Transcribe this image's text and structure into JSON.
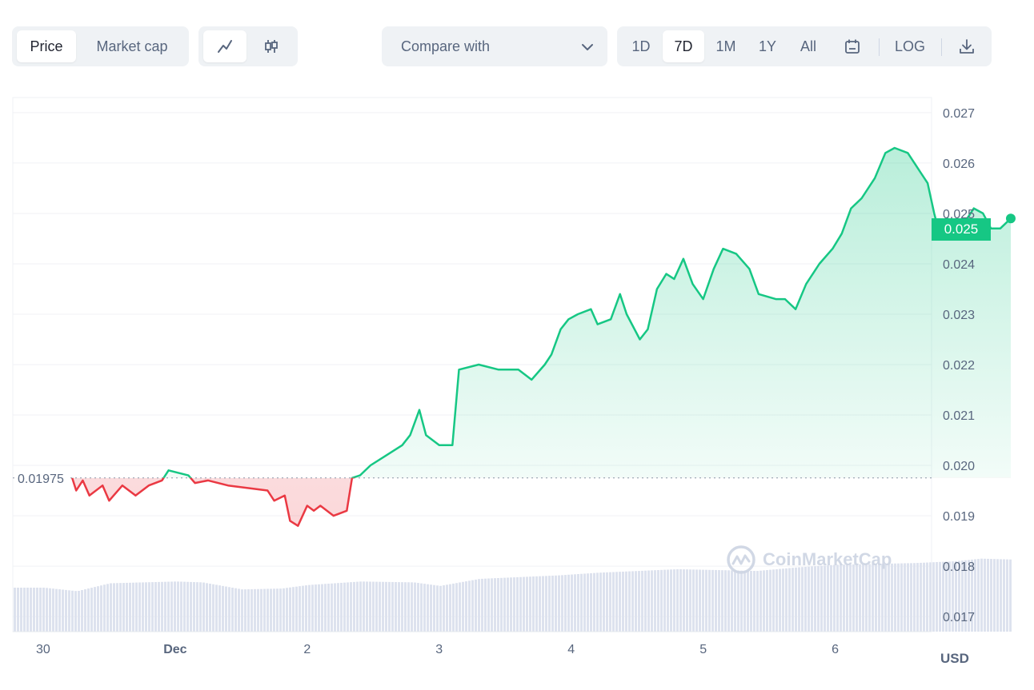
{
  "toolbar": {
    "metric_tabs": [
      {
        "label": "Price",
        "active": true
      },
      {
        "label": "Market cap",
        "active": false
      }
    ],
    "chart_style": [
      {
        "icon": "line-chart-icon",
        "active": true
      },
      {
        "icon": "candlestick-icon",
        "active": false
      }
    ],
    "compare": {
      "label": "Compare with",
      "icon": "chevron-down-icon"
    },
    "ranges": [
      {
        "label": "1D",
        "active": false
      },
      {
        "label": "7D",
        "active": true
      },
      {
        "label": "1M",
        "active": false
      },
      {
        "label": "1Y",
        "active": false
      },
      {
        "label": "All",
        "active": false
      }
    ],
    "calendar_icon": "calendar-icon",
    "log_label": "LOG",
    "download_icon": "download-icon"
  },
  "current_price_label": "0.025",
  "baseline_label": "0.01975",
  "currency_label": "USD",
  "watermark_text": "CoinMarketCap",
  "colors": {
    "up": "#16c784",
    "down": "#ea3943",
    "accent_bg": "#eff2f5",
    "volume": "#dde2ee"
  },
  "chart_data": {
    "type": "line",
    "title": "",
    "xlabel": "",
    "ylabel": "",
    "ylim": [
      0.0167,
      0.0273
    ],
    "baseline": 0.01975,
    "y_ticks": [
      "0.027",
      "0.026",
      "0.025",
      "0.024",
      "0.023",
      "0.022",
      "0.021",
      "0.020",
      "0.019",
      "0.018",
      "0.017"
    ],
    "x_ticks": [
      {
        "label": "30",
        "day": 0,
        "bold": false
      },
      {
        "label": "Dec",
        "day": 1,
        "bold": true
      },
      {
        "label": "2",
        "day": 2,
        "bold": false
      },
      {
        "label": "3",
        "day": 3,
        "bold": false
      },
      {
        "label": "4",
        "day": 4,
        "bold": false
      },
      {
        "label": "5",
        "day": 5,
        "bold": false
      },
      {
        "label": "6",
        "day": 6,
        "bold": false
      }
    ],
    "x_range_days": [
      -0.23,
      6.73
    ],
    "series": [
      {
        "values": [
          [
            0.22,
            0.01975
          ],
          [
            0.25,
            0.0195
          ],
          [
            0.3,
            0.0197
          ],
          [
            0.35,
            0.0194
          ],
          [
            0.45,
            0.0196
          ],
          [
            0.5,
            0.0193
          ],
          [
            0.6,
            0.0196
          ],
          [
            0.7,
            0.0194
          ],
          [
            0.8,
            0.0196
          ],
          [
            0.9,
            0.0197
          ],
          [
            0.95,
            0.0199
          ],
          [
            1.1,
            0.0198
          ],
          [
            1.15,
            0.01965
          ],
          [
            1.25,
            0.0197
          ],
          [
            1.4,
            0.0196
          ],
          [
            1.55,
            0.01955
          ],
          [
            1.7,
            0.0195
          ],
          [
            1.75,
            0.0193
          ],
          [
            1.83,
            0.0194
          ],
          [
            1.87,
            0.0189
          ],
          [
            1.93,
            0.0188
          ],
          [
            2.0,
            0.0192
          ],
          [
            2.05,
            0.0191
          ],
          [
            2.1,
            0.0192
          ],
          [
            2.2,
            0.019
          ],
          [
            2.3,
            0.0191
          ],
          [
            2.34,
            0.01975
          ],
          [
            2.4,
            0.0198
          ],
          [
            2.48,
            0.02
          ],
          [
            2.6,
            0.0202
          ],
          [
            2.72,
            0.0204
          ],
          [
            2.78,
            0.0206
          ],
          [
            2.85,
            0.0211
          ],
          [
            2.9,
            0.0206
          ],
          [
            3.0,
            0.0204
          ],
          [
            3.1,
            0.0204
          ],
          [
            3.15,
            0.0219
          ],
          [
            3.3,
            0.022
          ],
          [
            3.45,
            0.0219
          ],
          [
            3.6,
            0.0219
          ],
          [
            3.7,
            0.0217
          ],
          [
            3.8,
            0.022
          ],
          [
            3.85,
            0.0222
          ],
          [
            3.92,
            0.0227
          ],
          [
            3.98,
            0.0229
          ],
          [
            4.05,
            0.023
          ],
          [
            4.15,
            0.0231
          ],
          [
            4.2,
            0.0228
          ],
          [
            4.3,
            0.0229
          ],
          [
            4.37,
            0.0234
          ],
          [
            4.42,
            0.023
          ],
          [
            4.52,
            0.0225
          ],
          [
            4.58,
            0.0227
          ],
          [
            4.65,
            0.0235
          ],
          [
            4.72,
            0.0238
          ],
          [
            4.78,
            0.0237
          ],
          [
            4.85,
            0.0241
          ],
          [
            4.92,
            0.0236
          ],
          [
            5.0,
            0.0233
          ],
          [
            5.08,
            0.0239
          ],
          [
            5.15,
            0.0243
          ],
          [
            5.25,
            0.0242
          ],
          [
            5.35,
            0.0239
          ],
          [
            5.42,
            0.0234
          ],
          [
            5.55,
            0.0233
          ],
          [
            5.62,
            0.0233
          ],
          [
            5.7,
            0.0231
          ],
          [
            5.78,
            0.0236
          ],
          [
            5.88,
            0.024
          ],
          [
            5.98,
            0.0243
          ],
          [
            6.05,
            0.0246
          ],
          [
            6.12,
            0.0251
          ],
          [
            6.2,
            0.0253
          ],
          [
            6.3,
            0.0257
          ],
          [
            6.38,
            0.0262
          ],
          [
            6.45,
            0.0263
          ],
          [
            6.55,
            0.0262
          ],
          [
            6.65,
            0.0258
          ],
          [
            6.7,
            0.0256
          ],
          [
            6.75,
            0.025
          ],
          [
            6.8,
            0.0245
          ],
          [
            6.85,
            0.0249
          ],
          [
            6.95,
            0.0247
          ],
          [
            7.05,
            0.0251
          ],
          [
            7.12,
            0.025
          ],
          [
            7.18,
            0.0247
          ],
          [
            7.25,
            0.0247
          ],
          [
            7.33,
            0.0249
          ]
        ]
      }
    ],
    "volume": {
      "values": [
        [
          0.0,
          0.5
        ],
        [
          0.25,
          0.46
        ],
        [
          0.5,
          0.55
        ],
        [
          1.0,
          0.57
        ],
        [
          1.2,
          0.56
        ],
        [
          1.5,
          0.48
        ],
        [
          1.8,
          0.49
        ],
        [
          2.0,
          0.53
        ],
        [
          2.4,
          0.57
        ],
        [
          2.8,
          0.56
        ],
        [
          3.0,
          0.52
        ],
        [
          3.3,
          0.6
        ],
        [
          3.6,
          0.62
        ],
        [
          3.9,
          0.64
        ],
        [
          4.2,
          0.67
        ],
        [
          4.5,
          0.69
        ],
        [
          4.8,
          0.71
        ],
        [
          5.1,
          0.7
        ],
        [
          5.4,
          0.69
        ],
        [
          5.7,
          0.73
        ],
        [
          6.0,
          0.76
        ],
        [
          6.3,
          0.77
        ],
        [
          6.6,
          0.78
        ],
        [
          6.9,
          0.8
        ],
        [
          7.1,
          0.83
        ],
        [
          7.33,
          0.82
        ]
      ]
    }
  }
}
